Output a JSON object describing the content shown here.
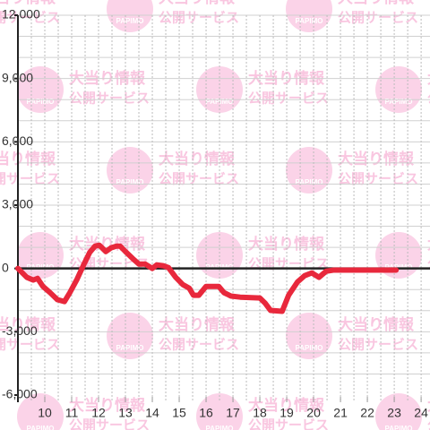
{
  "chart_data": {
    "type": "line",
    "x": [
      9.0,
      9.33,
      9.57,
      9.73,
      9.93,
      10.2,
      10.47,
      10.73,
      10.93,
      11.2,
      11.43,
      11.67,
      11.87,
      12.03,
      12.27,
      12.47,
      12.67,
      12.8,
      13.0,
      13.27,
      13.5,
      13.73,
      14.0,
      14.17,
      14.4,
      14.6,
      14.87,
      15.13,
      15.37,
      15.53,
      15.73,
      16.0,
      16.47,
      16.67,
      16.93,
      17.27,
      18.0,
      18.2,
      18.4,
      18.83,
      19.07,
      19.4,
      19.67,
      19.93,
      20.2,
      20.47,
      20.73,
      23.07
    ],
    "series": [
      {
        "color": "#e8283c",
        "values": [
          0,
          -420,
          -550,
          -470,
          -850,
          -1150,
          -1480,
          -1570,
          -1150,
          -510,
          130,
          760,
          1060,
          1100,
          800,
          980,
          1060,
          1060,
          800,
          470,
          210,
          210,
          0,
          170,
          130,
          40,
          -420,
          -760,
          -930,
          -1270,
          -1270,
          -850,
          -850,
          -1150,
          -1310,
          -1360,
          -1400,
          -1650,
          -1990,
          -2030,
          -1270,
          -640,
          -340,
          -210,
          -420,
          -130,
          -80,
          -80
        ]
      }
    ],
    "xlim": [
      9,
      24.33
    ],
    "xticks": [
      10,
      11,
      12,
      13,
      14,
      15,
      16,
      17,
      18,
      19,
      20,
      21,
      22,
      23,
      24
    ],
    "x_minor_ticks": [
      9.5,
      10,
      10.5,
      11,
      11.5,
      12,
      12.5,
      13,
      13.5,
      14,
      14.5,
      15,
      15.5,
      16,
      16.5,
      17,
      17.5,
      18,
      18.5,
      19,
      19.5,
      20,
      20.5,
      21,
      21.5,
      22,
      22.5,
      23,
      23.5,
      24
    ],
    "ylim": [
      -6000,
      12000
    ],
    "yticks": [
      {
        "value": 12000,
        "label": "12,000"
      },
      {
        "value": 9000,
        "label": "9,000"
      },
      {
        "value": 6000,
        "label": "6,000"
      },
      {
        "value": 3000,
        "label": "3,000"
      },
      0,
      {
        "value": -3000,
        "label": "-3,000"
      },
      {
        "value": -6000,
        "label": "-6,000"
      }
    ],
    "y_minor_ticks": [
      -5000,
      -4000,
      -3000,
      -2000,
      -1000,
      1000,
      2000,
      3000,
      4000,
      5000,
      6000,
      7000,
      8000,
      9000,
      10000,
      11000,
      12000
    ],
    "grid": true
  },
  "watermark": {
    "title": "大当り情報",
    "subtitle": "公開サービス",
    "logo": "PAPIMO"
  }
}
